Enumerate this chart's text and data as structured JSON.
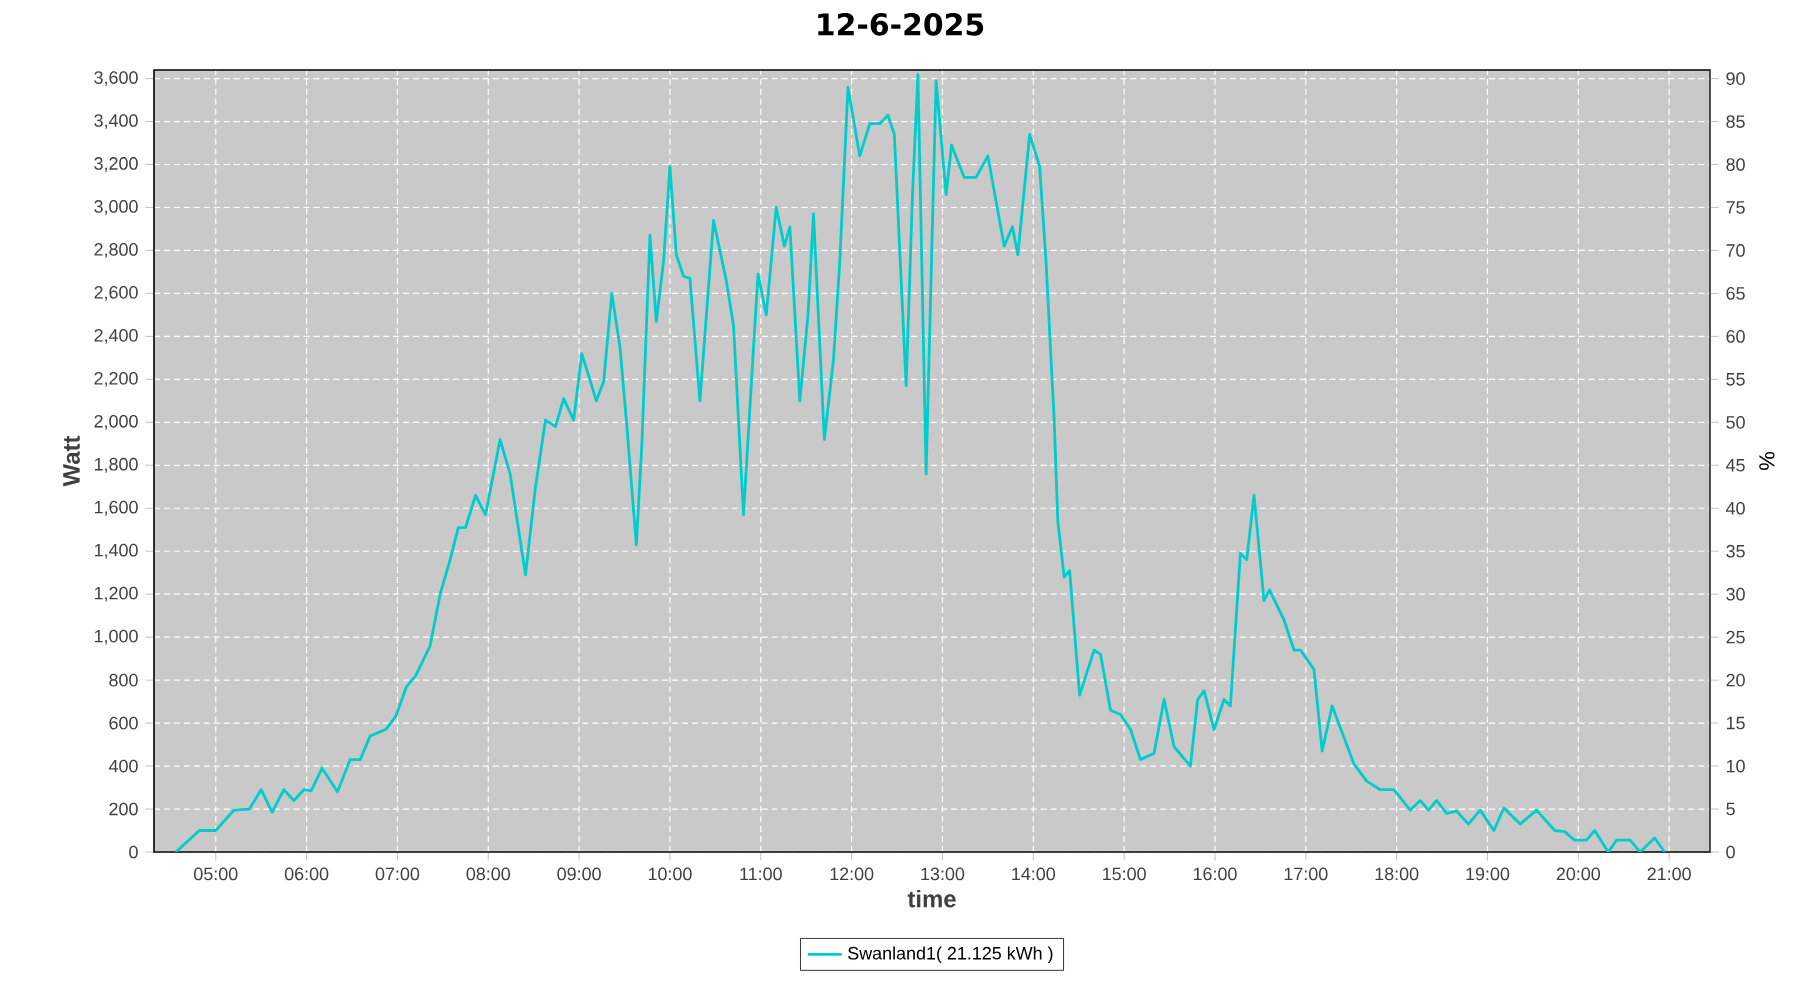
{
  "chart_data": {
    "type": "line",
    "title": "12-6-2025",
    "xlabel": "time",
    "ylabel": "Watt",
    "y2label": "%",
    "x": [
      4.56,
      4.82,
      5.0,
      5.2,
      5.37,
      5.5,
      5.62,
      5.75,
      5.86,
      5.97,
      6.05,
      6.17,
      6.34,
      6.48,
      6.59,
      6.7,
      6.87,
      6.98,
      7.1,
      7.2,
      7.36,
      7.47,
      7.58,
      7.67,
      7.75,
      7.86,
      7.97,
      8.13,
      8.24,
      8.41,
      8.52,
      8.63,
      8.74,
      8.83,
      8.94,
      9.03,
      9.19,
      9.27,
      9.36,
      9.45,
      9.52,
      9.63,
      9.69,
      9.78,
      9.85,
      9.93,
      10.0,
      10.07,
      10.15,
      10.22,
      10.33,
      10.48,
      10.62,
      10.7,
      10.81,
      10.92,
      10.97,
      11.06,
      11.17,
      11.26,
      11.32,
      11.43,
      11.52,
      11.58,
      11.7,
      11.8,
      11.87,
      11.96,
      12.09,
      12.2,
      12.31,
      12.4,
      12.47,
      12.6,
      12.67,
      12.73,
      12.82,
      12.93,
      13.04,
      13.1,
      13.24,
      13.37,
      13.5,
      13.68,
      13.77,
      13.83,
      13.96,
      14.07,
      14.14,
      14.23,
      14.27,
      14.34,
      14.4,
      14.51,
      14.67,
      14.74,
      14.85,
      14.96,
      15.07,
      15.18,
      15.33,
      15.44,
      15.55,
      15.73,
      15.81,
      15.88,
      15.99,
      16.1,
      16.17,
      16.28,
      16.35,
      16.43,
      16.54,
      16.6,
      16.76,
      16.87,
      16.94,
      17.09,
      17.18,
      17.29,
      17.53,
      17.67,
      17.82,
      17.97,
      18.15,
      18.26,
      18.35,
      18.44,
      18.55,
      18.66,
      18.79,
      18.92,
      19.07,
      19.18,
      19.36,
      19.54,
      19.74,
      19.85,
      19.96,
      20.09,
      20.18,
      20.33,
      20.42,
      20.57,
      20.68,
      20.84,
      20.95
    ],
    "series": [
      {
        "name": "Swanland1( 21.125 kWh )",
        "color": "#00cccc",
        "values": [
          0,
          100,
          100,
          195,
          200,
          290,
          185,
          290,
          240,
          290,
          285,
          390,
          280,
          430,
          430,
          540,
          570,
          630,
          770,
          820,
          960,
          1200,
          1360,
          1510,
          1510,
          1660,
          1570,
          1920,
          1760,
          1290,
          1700,
          2010,
          1980,
          2110,
          2010,
          2320,
          2100,
          2190,
          2600,
          2350,
          2010,
          1430,
          1890,
          2870,
          2470,
          2750,
          3190,
          2780,
          2680,
          2670,
          2100,
          2940,
          2660,
          2450,
          1570,
          2350,
          2690,
          2500,
          3000,
          2820,
          2910,
          2100,
          2500,
          2970,
          1920,
          2290,
          2750,
          3560,
          3240,
          3390,
          3390,
          3430,
          3340,
          2170,
          3060,
          3620,
          1760,
          3590,
          3060,
          3290,
          3140,
          3140,
          3240,
          2820,
          2910,
          2780,
          3340,
          3190,
          2750,
          2010,
          1540,
          1280,
          1310,
          730,
          940,
          920,
          660,
          640,
          570,
          430,
          460,
          710,
          490,
          400,
          710,
          750,
          570,
          710,
          680,
          1390,
          1360,
          1660,
          1170,
          1220,
          1080,
          940,
          940,
          850,
          470,
          680,
          410,
          330,
          290,
          290,
          195,
          240,
          195,
          240,
          180,
          190,
          130,
          195,
          100,
          205,
          130,
          195,
          100,
          95,
          55,
          55,
          100,
          0,
          55,
          55,
          0,
          65,
          0
        ]
      }
    ],
    "xlim": [
      4.32,
      21.45
    ],
    "xticks": [
      {
        "value": 5,
        "label": "05:00"
      },
      {
        "value": 6,
        "label": "06:00"
      },
      {
        "value": 7,
        "label": "07:00"
      },
      {
        "value": 8,
        "label": "08:00"
      },
      {
        "value": 9,
        "label": "09:00"
      },
      {
        "value": 10,
        "label": "10:00"
      },
      {
        "value": 11,
        "label": "11:00"
      },
      {
        "value": 12,
        "label": "12:00"
      },
      {
        "value": 13,
        "label": "13:00"
      },
      {
        "value": 14,
        "label": "14:00"
      },
      {
        "value": 15,
        "label": "15:00"
      },
      {
        "value": 16,
        "label": "16:00"
      },
      {
        "value": 17,
        "label": "17:00"
      },
      {
        "value": 18,
        "label": "18:00"
      },
      {
        "value": 19,
        "label": "19:00"
      },
      {
        "value": 20,
        "label": "20:00"
      },
      {
        "value": 21,
        "label": "21:00"
      }
    ],
    "ylim": [
      0,
      3640
    ],
    "yticks": [
      0,
      200,
      400,
      600,
      800,
      {
        "value": 1000,
        "label": "1,000"
      },
      {
        "value": 1200,
        "label": "1,200"
      },
      {
        "value": 1400,
        "label": "1,400"
      },
      {
        "value": 1600,
        "label": "1,600"
      },
      {
        "value": 1800,
        "label": "1,800"
      },
      {
        "value": 2000,
        "label": "2,000"
      },
      {
        "value": 2200,
        "label": "2,200"
      },
      {
        "value": 2400,
        "label": "2,400"
      },
      {
        "value": 2600,
        "label": "2,600"
      },
      {
        "value": 2800,
        "label": "2,800"
      },
      {
        "value": 3000,
        "label": "3,000"
      },
      {
        "value": 3200,
        "label": "3,200"
      },
      {
        "value": 3400,
        "label": "3,400"
      },
      {
        "value": 3600,
        "label": "3,600"
      }
    ],
    "y2lim": [
      0,
      91
    ],
    "y2ticks": [
      0,
      5,
      10,
      15,
      20,
      25,
      30,
      35,
      40,
      45,
      50,
      55,
      60,
      65,
      70,
      75,
      80,
      85,
      90
    ],
    "grid": true,
    "legend": "bottom",
    "marker": "none",
    "line_style": "solid"
  }
}
